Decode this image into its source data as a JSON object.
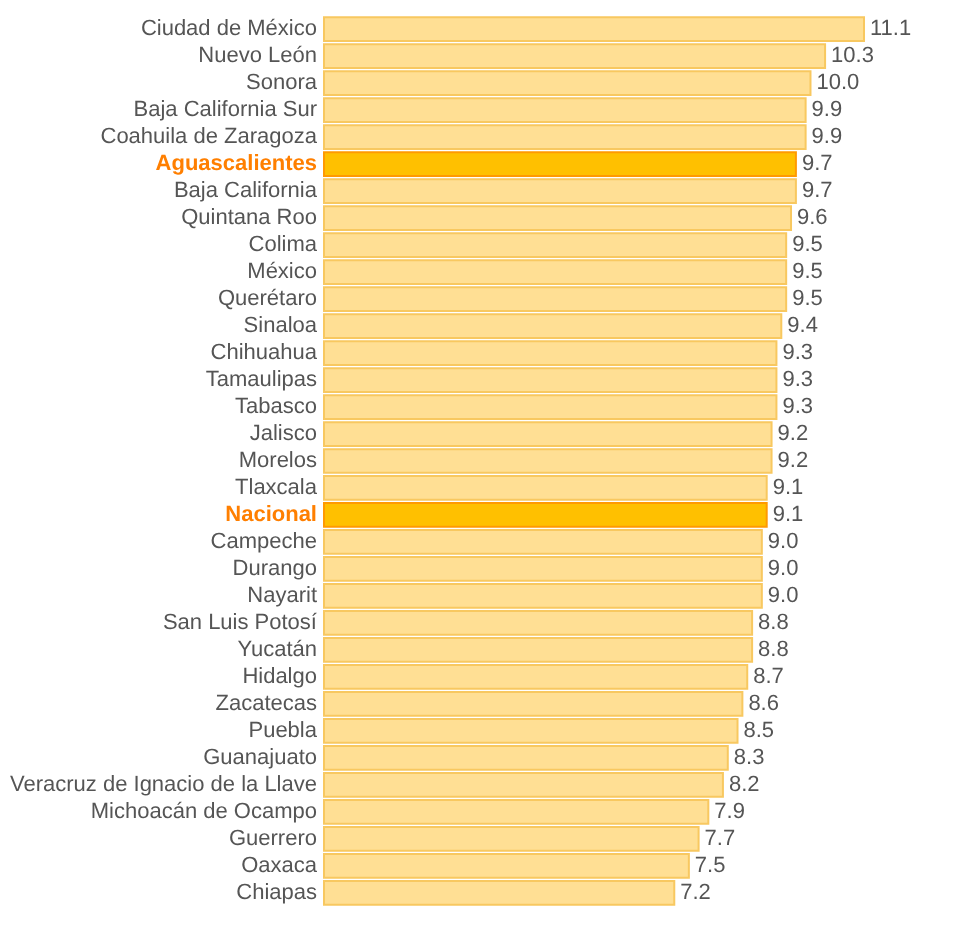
{
  "chart_data": {
    "type": "bar",
    "orientation": "horizontal",
    "categories": [
      "Ciudad de México",
      "Nuevo León",
      "Sonora",
      "Baja California Sur",
      "Coahuila de Zaragoza",
      "Aguascalientes",
      "Baja California",
      "Quintana Roo",
      "Colima",
      "México",
      "Querétaro",
      "Sinaloa",
      "Chihuahua",
      "Tamaulipas",
      "Tabasco",
      "Jalisco",
      "Morelos",
      "Tlaxcala",
      "Nacional",
      "Campeche",
      "Durango",
      "Nayarit",
      "San Luis Potosí",
      "Yucatán",
      "Hidalgo",
      "Zacatecas",
      "Puebla",
      "Guanajuato",
      "Veracruz de Ignacio de la Llave",
      "Michoacán de Ocampo",
      "Guerrero",
      "Oaxaca",
      "Chiapas"
    ],
    "values": [
      11.1,
      10.3,
      10.0,
      9.9,
      9.9,
      9.7,
      9.7,
      9.6,
      9.5,
      9.5,
      9.5,
      9.4,
      9.3,
      9.3,
      9.3,
      9.2,
      9.2,
      9.1,
      9.1,
      9.0,
      9.0,
      9.0,
      8.8,
      8.8,
      8.7,
      8.6,
      8.5,
      8.3,
      8.2,
      7.9,
      7.7,
      7.5,
      7.2
    ],
    "colors": [
      "#ffdf94",
      "#ffdf94",
      "#ffdf94",
      "#ffdf94",
      "#ffdf94",
      "#ffc000",
      "#ffdf94",
      "#ffdf94",
      "#ffdf94",
      "#ffdf94",
      "#ffdf94",
      "#ffdf94",
      "#ffdf94",
      "#ffdf94",
      "#ffdf94",
      "#ffdf94",
      "#ffdf94",
      "#ffdf94",
      "#ffc000",
      "#ffdf94",
      "#ffdf94",
      "#ffdf94",
      "#ffdf94",
      "#ffdf94",
      "#ffdf94",
      "#ffdf94",
      "#ffdf94",
      "#ffdf94",
      "#ffdf94",
      "#ffdf94",
      "#ffdf94",
      "#ffdf94",
      "#ffdf94"
    ],
    "value_labels": [
      "11.1",
      "10.3",
      "10.0",
      "9.9",
      "9.9",
      "9.7",
      "9.7",
      "9.6",
      "9.5",
      "9.5",
      "9.5",
      "9.4",
      "9.3",
      "9.3",
      "9.3",
      "9.2",
      "9.2",
      "9.1",
      "9.1",
      "9.0",
      "9.0",
      "9.0",
      "8.8",
      "8.8",
      "8.7",
      "8.6",
      "8.5",
      "8.3",
      "8.2",
      "7.9",
      "7.7",
      "7.5",
      "7.2"
    ]
  }
}
